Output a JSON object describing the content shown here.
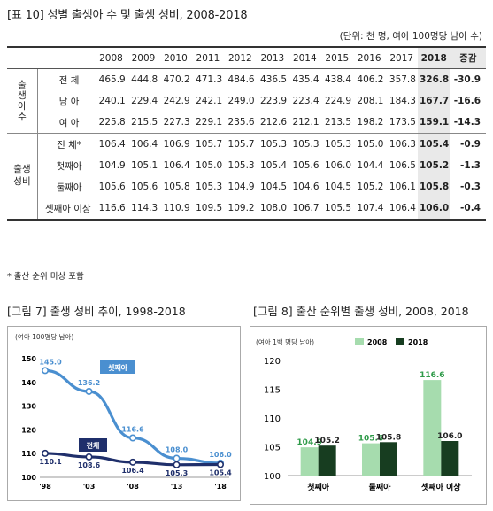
{
  "table": {
    "title": "[표 10] 성별 출생아 수 및 출생 성비, 2008-2018",
    "unit": "(단위: 천 명, 여아 100명당 남아 수)",
    "years": [
      "2008",
      "2009",
      "2010",
      "2011",
      "2012",
      "2013",
      "2014",
      "2015",
      "2016",
      "2017",
      "2018"
    ],
    "change_label": "증감",
    "groups": [
      {
        "label": "출생아수",
        "rows": [
          {
            "label": "전 체",
            "values": [
              "465.9",
              "444.8",
              "470.2",
              "471.3",
              "484.6",
              "436.5",
              "435.4",
              "438.4",
              "406.2",
              "357.8",
              "326.8"
            ],
            "change": "-30.9"
          },
          {
            "label": "남 아",
            "values": [
              "240.1",
              "229.4",
              "242.9",
              "242.1",
              "249.0",
              "223.9",
              "223.4",
              "224.9",
              "208.1",
              "184.3",
              "167.7"
            ],
            "change": "-16.6"
          },
          {
            "label": "여 아",
            "values": [
              "225.8",
              "215.5",
              "227.3",
              "229.1",
              "235.6",
              "212.6",
              "212.1",
              "213.5",
              "198.2",
              "173.5",
              "159.1"
            ],
            "change": "-14.3"
          }
        ]
      },
      {
        "label": "출생 성비",
        "rows": [
          {
            "label": "전 체*",
            "values": [
              "106.4",
              "106.4",
              "106.9",
              "105.7",
              "105.7",
              "105.3",
              "105.3",
              "105.3",
              "105.0",
              "106.3",
              "105.4"
            ],
            "change": "-0.9"
          },
          {
            "label": "첫째아",
            "values": [
              "104.9",
              "105.1",
              "106.4",
              "105.0",
              "105.3",
              "105.4",
              "105.6",
              "106.0",
              "104.4",
              "106.5",
              "105.2"
            ],
            "change": "-1.3"
          },
          {
            "label": "둘째아",
            "values": [
              "105.6",
              "105.6",
              "105.8",
              "105.3",
              "104.9",
              "104.5",
              "104.6",
              "104.5",
              "105.2",
              "106.1",
              "105.8"
            ],
            "change": "-0.3"
          },
          {
            "label": "셋째아 이상",
            "values": [
              "116.6",
              "114.3",
              "110.9",
              "109.5",
              "109.2",
              "108.0",
              "106.7",
              "105.5",
              "107.4",
              "106.4",
              "106.0"
            ],
            "change": "-0.4"
          }
        ]
      }
    ],
    "note": "* 출산 순위 미상 포함"
  },
  "fig7": {
    "title": "[그림 7] 출생 성비 추이, 1998-2018",
    "unit_label": "(여아 100명당 남아)",
    "chart_data": {
      "type": "line",
      "x": [
        "'98",
        "'03",
        "'08",
        "'13",
        "'18"
      ],
      "ylim": [
        100,
        150
      ],
      "yticks": [
        100,
        110,
        120,
        130,
        140,
        150
      ],
      "series": [
        {
          "name": "셋째아",
          "color": "#4a8fd0",
          "values": [
            145.0,
            136.2,
            116.6,
            108.0,
            106.0
          ]
        },
        {
          "name": "전체",
          "color": "#1f2f6b",
          "values": [
            110.1,
            108.6,
            106.4,
            105.3,
            105.4
          ]
        }
      ],
      "point_labels": [
        [
          "145.0",
          "136.2",
          "116.6",
          "108.0",
          "106.0"
        ],
        [
          "110.1",
          "108.6",
          "106.4",
          "105.3",
          "105.4"
        ]
      ]
    }
  },
  "fig8": {
    "title": "[그림 8] 출산 순위별 출생 성비, 2008, 2018",
    "unit_label": "(여아 1백 명당 남아)",
    "chart_data": {
      "type": "bar",
      "categories": [
        "첫째아",
        "둘째아",
        "셋째아 이상"
      ],
      "ylim": [
        100,
        120
      ],
      "yticks": [
        100,
        105,
        110,
        115,
        120
      ],
      "series": [
        {
          "name": "2008",
          "color": "#a6dcae",
          "values": [
            104.9,
            105.6,
            116.6
          ]
        },
        {
          "name": "2018",
          "color": "#173d20",
          "values": [
            105.2,
            105.8,
            106.0
          ]
        }
      ],
      "label_colors": {
        "2008": "#2e9a48",
        "2018": "#222222"
      }
    }
  }
}
